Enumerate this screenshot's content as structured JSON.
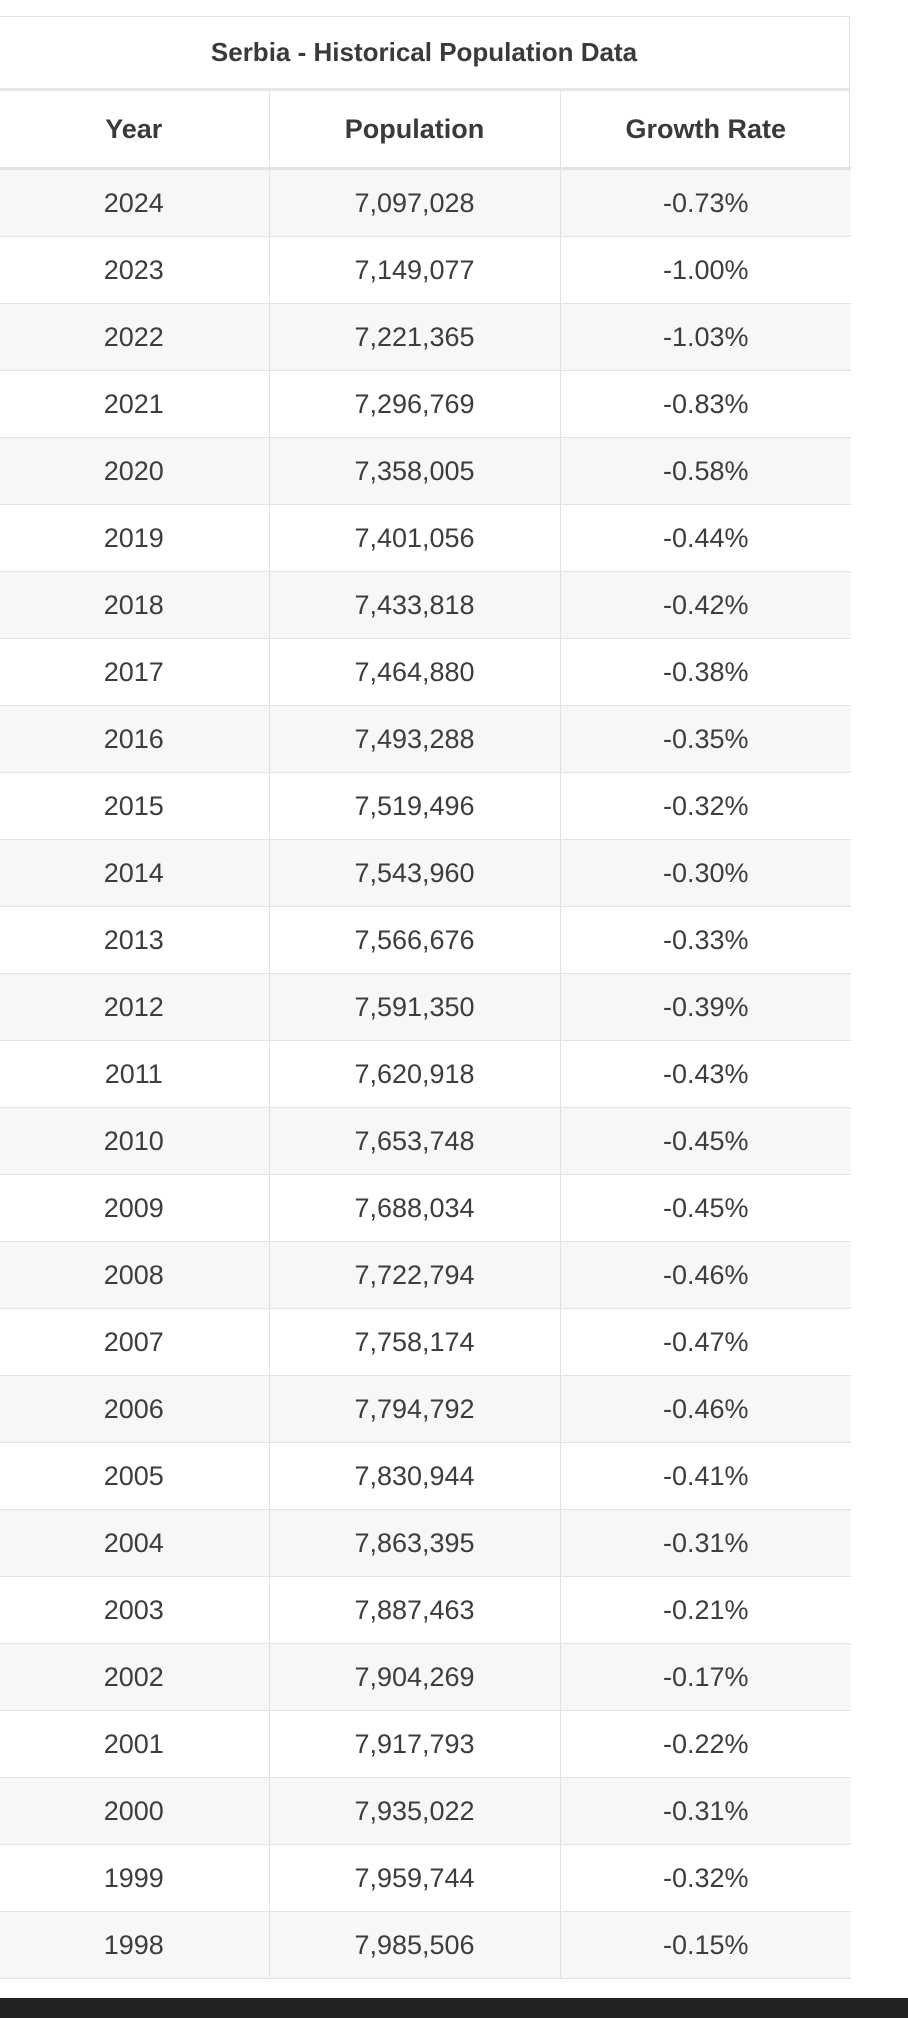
{
  "table": {
    "caption": "Serbia - Historical Population Data",
    "columns": [
      "Year",
      "Population",
      "Growth Rate"
    ],
    "rows": [
      [
        "2024",
        "7,097,028",
        "-0.73%"
      ],
      [
        "2023",
        "7,149,077",
        "-1.00%"
      ],
      [
        "2022",
        "7,221,365",
        "-1.03%"
      ],
      [
        "2021",
        "7,296,769",
        "-0.83%"
      ],
      [
        "2020",
        "7,358,005",
        "-0.58%"
      ],
      [
        "2019",
        "7,401,056",
        "-0.44%"
      ],
      [
        "2018",
        "7,433,818",
        "-0.42%"
      ],
      [
        "2017",
        "7,464,880",
        "-0.38%"
      ],
      [
        "2016",
        "7,493,288",
        "-0.35%"
      ],
      [
        "2015",
        "7,519,496",
        "-0.32%"
      ],
      [
        "2014",
        "7,543,960",
        "-0.30%"
      ],
      [
        "2013",
        "7,566,676",
        "-0.33%"
      ],
      [
        "2012",
        "7,591,350",
        "-0.39%"
      ],
      [
        "2011",
        "7,620,918",
        "-0.43%"
      ],
      [
        "2010",
        "7,653,748",
        "-0.45%"
      ],
      [
        "2009",
        "7,688,034",
        "-0.45%"
      ],
      [
        "2008",
        "7,722,794",
        "-0.46%"
      ],
      [
        "2007",
        "7,758,174",
        "-0.47%"
      ],
      [
        "2006",
        "7,794,792",
        "-0.46%"
      ],
      [
        "2005",
        "7,830,944",
        "-0.41%"
      ],
      [
        "2004",
        "7,863,395",
        "-0.31%"
      ],
      [
        "2003",
        "7,887,463",
        "-0.21%"
      ],
      [
        "2002",
        "7,904,269",
        "-0.17%"
      ],
      [
        "2001",
        "7,917,793",
        "-0.22%"
      ],
      [
        "2000",
        "7,935,022",
        "-0.31%"
      ],
      [
        "1999",
        "7,959,744",
        "-0.32%"
      ],
      [
        "1998",
        "7,985,506",
        "-0.15%"
      ]
    ]
  }
}
